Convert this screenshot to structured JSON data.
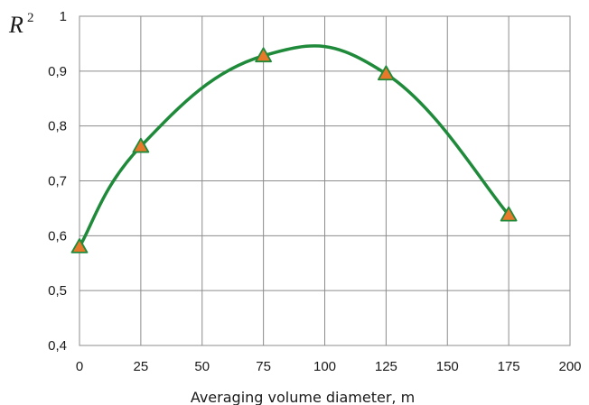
{
  "chart_data": {
    "type": "line",
    "xlabel": "Averaging volume diameter, m",
    "ylabel": "R",
    "ylabel_superscript": "2",
    "xlim": [
      0,
      200
    ],
    "ylim": [
      0.4,
      1.0
    ],
    "x_ticks": [
      "0",
      "25",
      "50",
      "75",
      "100",
      "125",
      "150",
      "175",
      "200"
    ],
    "y_ticks": [
      "0,4",
      "0,5",
      "0,6",
      "0,7",
      "0,8",
      "0,9",
      "1"
    ],
    "grid": true,
    "legend": "none",
    "series": [
      {
        "x": [
          0,
          25,
          75,
          125,
          175
        ],
        "values": [
          0.58,
          0.763,
          0.928,
          0.895,
          0.638
        ],
        "line_color": "#1e8a3a",
        "marker": "triangle",
        "marker_fill": "#e8792a",
        "marker_stroke": "#1e8a3a",
        "smooth": true
      }
    ]
  }
}
